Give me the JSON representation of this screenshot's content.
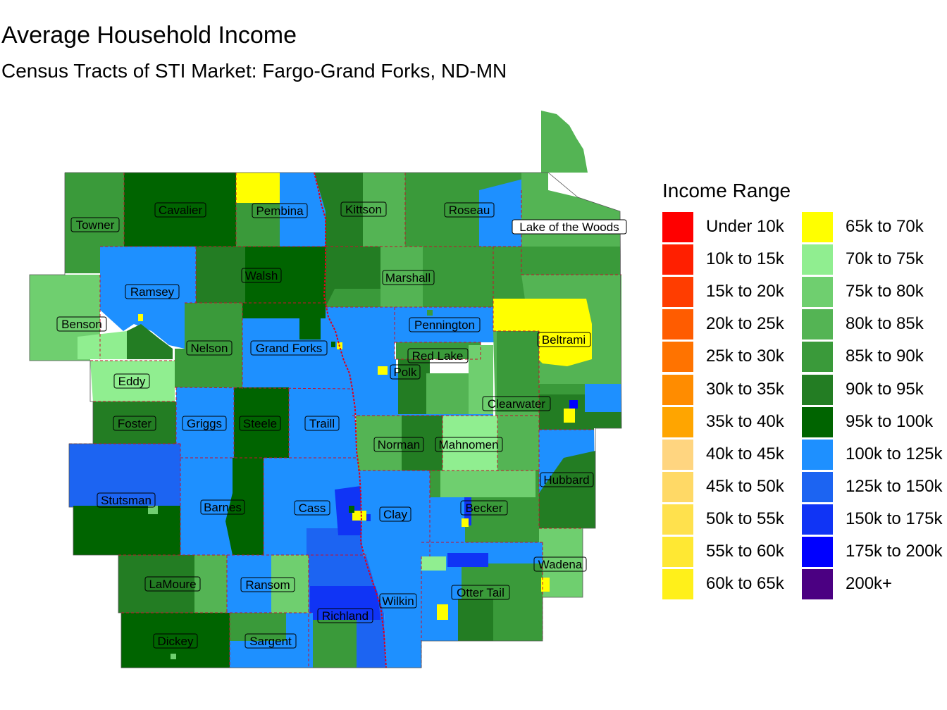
{
  "title": "Average Household Income",
  "subtitle": "Census Tracts of STI Market: Fargo-Grand Forks, ND-MN",
  "legend": {
    "title": "Income Range",
    "items": [
      {
        "label": "Under 10k",
        "color": "#ff0000"
      },
      {
        "label": "10k to 15k",
        "color": "#ff1f00"
      },
      {
        "label": "15k to 20k",
        "color": "#ff3d00"
      },
      {
        "label": "20k to 25k",
        "color": "#ff5c00"
      },
      {
        "label": "25k to 30k",
        "color": "#ff7300"
      },
      {
        "label": "30k to 35k",
        "color": "#ff8c00"
      },
      {
        "label": "35k to 40k",
        "color": "#ffa500"
      },
      {
        "label": "40k to 45k",
        "color": "#ffd580"
      },
      {
        "label": "45k to 50k",
        "color": "#ffd966"
      },
      {
        "label": "50k to 55k",
        "color": "#ffe14d"
      },
      {
        "label": "55k to 60k",
        "color": "#ffe833"
      },
      {
        "label": "60k to 65k",
        "color": "#fff01a"
      },
      {
        "label": "65k to 70k",
        "color": "#ffff00"
      },
      {
        "label": "70k to 75k",
        "color": "#90ee90"
      },
      {
        "label": "75k to 80k",
        "color": "#6fcf6f"
      },
      {
        "label": "80k to 85k",
        "color": "#54b454"
      },
      {
        "label": "85k to 90k",
        "color": "#3a9a3a"
      },
      {
        "label": "90k to 95k",
        "color": "#237d23"
      },
      {
        "label": "95k to 100k",
        "color": "#006400"
      },
      {
        "label": "100k to 125k",
        "color": "#1e90ff"
      },
      {
        "label": "125k to 150k",
        "color": "#1c64f2"
      },
      {
        "label": "150k to 175k",
        "color": "#1034f5"
      },
      {
        "label": "175k to 200k",
        "color": "#0000ff"
      },
      {
        "label": "200k+",
        "color": "#4b0082"
      }
    ]
  },
  "counties": [
    {
      "name": "Towner",
      "fill": "85k to 90k"
    },
    {
      "name": "Cavalier",
      "fill": "95k to 100k"
    },
    {
      "name": "Pembina",
      "fill": "85k to 90k"
    },
    {
      "name": "Kittson",
      "fill": "90k to 95k"
    },
    {
      "name": "Roseau",
      "fill": "85k to 90k"
    },
    {
      "name": "Lake of the Woods",
      "fill": "80k to 85k"
    },
    {
      "name": "Ramsey",
      "fill": "100k to 125k"
    },
    {
      "name": "Walsh",
      "fill": "95k to 100k"
    },
    {
      "name": "Marshall",
      "fill": "85k to 90k"
    },
    {
      "name": "Benson",
      "fill": "75k to 80k"
    },
    {
      "name": "Nelson",
      "fill": "85k to 90k"
    },
    {
      "name": "Grand Forks",
      "fill": "100k to 125k"
    },
    {
      "name": "Pennington",
      "fill": "100k to 125k"
    },
    {
      "name": "Red Lake",
      "fill": "85k to 90k"
    },
    {
      "name": "Beltrami",
      "fill": "80k to 85k"
    },
    {
      "name": "Polk",
      "fill": "100k to 125k"
    },
    {
      "name": "Eddy",
      "fill": "70k to 75k"
    },
    {
      "name": "Clearwater",
      "fill": "80k to 85k"
    },
    {
      "name": "Foster",
      "fill": "90k to 95k"
    },
    {
      "name": "Griggs",
      "fill": "100k to 125k"
    },
    {
      "name": "Steele",
      "fill": "95k to 100k"
    },
    {
      "name": "Traill",
      "fill": "100k to 125k"
    },
    {
      "name": "Norman",
      "fill": "80k to 85k"
    },
    {
      "name": "Mahnomen",
      "fill": "70k to 75k"
    },
    {
      "name": "Hubbard",
      "fill": "100k to 125k"
    },
    {
      "name": "Stutsman",
      "fill": "125k to 150k"
    },
    {
      "name": "Barnes",
      "fill": "100k to 125k"
    },
    {
      "name": "Cass",
      "fill": "100k to 125k"
    },
    {
      "name": "Clay",
      "fill": "100k to 125k"
    },
    {
      "name": "Becker",
      "fill": "85k to 90k"
    },
    {
      "name": "Wadena",
      "fill": "75k to 80k"
    },
    {
      "name": "LaMoure",
      "fill": "90k to 95k"
    },
    {
      "name": "Ransom",
      "fill": "100k to 125k"
    },
    {
      "name": "Richland",
      "fill": "150k to 175k"
    },
    {
      "name": "Wilkin",
      "fill": "100k to 125k"
    },
    {
      "name": "Otter Tail",
      "fill": "100k to 125k"
    },
    {
      "name": "Dickey",
      "fill": "95k to 100k"
    },
    {
      "name": "Sargent",
      "fill": "100k to 125k"
    }
  ]
}
